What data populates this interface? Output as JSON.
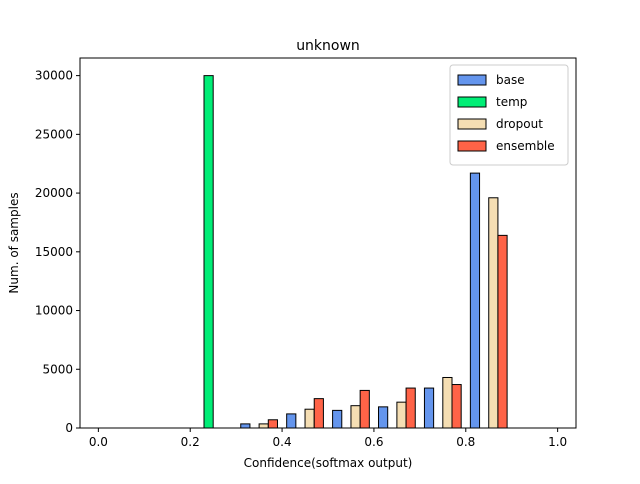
{
  "chart_data": {
    "type": "histogram",
    "title": "unknown",
    "x_label": "Confidence(softmax output)",
    "y_label": "Num. of samples",
    "bins": [
      0,
      0.1,
      0.2,
      0.3,
      0.4,
      0.5,
      0.6,
      0.7,
      0.8,
      0.9,
      1.0
    ],
    "series": [
      {
        "name": "base",
        "color": "#6495ed",
        "values": [
          0,
          0,
          0,
          350,
          1200,
          1500,
          1800,
          3400,
          21700,
          0
        ]
      },
      {
        "name": "temp",
        "color": "#00ee76",
        "values": [
          0,
          0,
          30000,
          0,
          0,
          0,
          0,
          0,
          0,
          0
        ]
      },
      {
        "name": "dropout",
        "color": "#f5deb3",
        "values": [
          0,
          0,
          0,
          350,
          1600,
          1900,
          2200,
          4300,
          19600,
          0
        ]
      },
      {
        "name": "ensemble",
        "color": "#ff6347",
        "values": [
          0,
          0,
          0,
          700,
          2500,
          3200,
          3400,
          3700,
          16400,
          0
        ]
      }
    ],
    "xlim": [
      -0.04,
      1.04
    ],
    "ylim": [
      0,
      31500
    ],
    "xticks": [
      {
        "value": 0,
        "label": "0.0"
      },
      0.2,
      0.4,
      0.6,
      0.8,
      {
        "value": 1,
        "label": "1.0"
      }
    ],
    "yticks": [
      0,
      5000,
      10000,
      15000,
      20000,
      25000,
      30000
    ],
    "legend": "upper right"
  }
}
